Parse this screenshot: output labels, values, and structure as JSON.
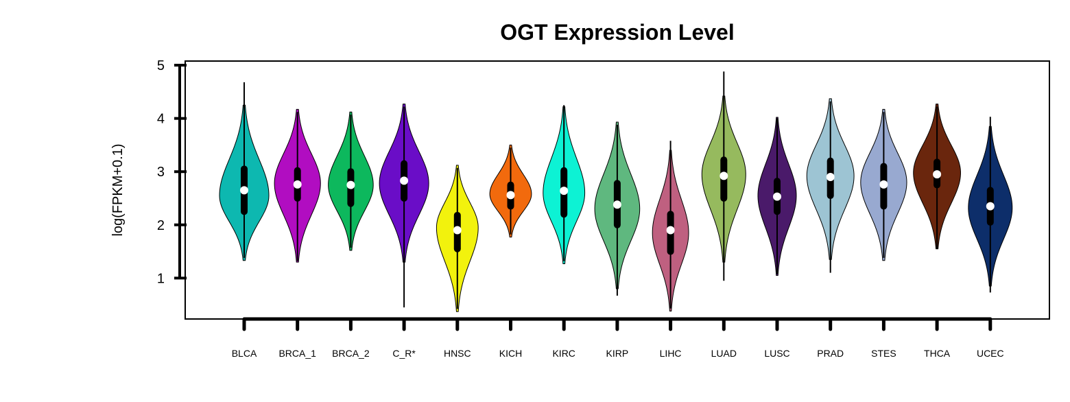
{
  "chart_data": {
    "type": "violin",
    "title": "OGT Expression Level",
    "xlabel": "",
    "ylabel": "log(FPKM+0.1)",
    "ylim": [
      0.23,
      5.05
    ],
    "yticks": [
      1,
      2,
      3,
      4,
      5
    ],
    "grid": false,
    "legend": "none",
    "categories": [
      "BLCA",
      "BRCA_1",
      "BRCA_2",
      "C_R*",
      "HNSC",
      "KICH",
      "KIRC",
      "KIRP",
      "LIHC",
      "LUAD",
      "LUSC",
      "PRAD",
      "STES",
      "THCA",
      "UCEC"
    ],
    "colors": [
      "#0DB8B0",
      "#B10DC1",
      "#0DB85D",
      "#6A0DC7",
      "#F2F20D",
      "#F26A0D",
      "#0DF2D4",
      "#5FB87F",
      "#BF6080",
      "#96BA5E",
      "#4A1A6A",
      "#9DC4D3",
      "#98A9D0",
      "#6A260D",
      "#0D2E6A"
    ],
    "series": [
      {
        "min": 1.38,
        "q1": 2.25,
        "median": 2.65,
        "q3": 3.05,
        "max": 4.68,
        "peak": 2.55,
        "width": 0.45
      },
      {
        "min": 1.32,
        "q1": 2.5,
        "median": 2.76,
        "q3": 3.02,
        "max": 4.12,
        "peak": 2.78,
        "width": 0.42
      },
      {
        "min": 1.57,
        "q1": 2.4,
        "median": 2.75,
        "q3": 3.0,
        "max": 4.07,
        "peak": 2.75,
        "width": 0.41
      },
      {
        "min": 0.45,
        "q1": 2.5,
        "median": 2.83,
        "q3": 3.15,
        "max": 4.22,
        "peak": 2.78,
        "width": 0.45
      },
      {
        "min": 0.42,
        "q1": 1.55,
        "median": 1.9,
        "q3": 2.18,
        "max": 3.07,
        "peak": 1.95,
        "width": 0.38
      },
      {
        "min": 1.82,
        "q1": 2.35,
        "median": 2.56,
        "q3": 2.75,
        "max": 3.45,
        "peak": 2.58,
        "width": 0.38
      },
      {
        "min": 1.32,
        "q1": 2.2,
        "median": 2.64,
        "q3": 3.02,
        "max": 4.25,
        "peak": 2.6,
        "width": 0.38
      },
      {
        "min": 0.67,
        "q1": 2.0,
        "median": 2.38,
        "q3": 2.78,
        "max": 3.88,
        "peak": 2.3,
        "width": 0.41
      },
      {
        "min": 0.43,
        "q1": 1.5,
        "median": 1.9,
        "q3": 2.2,
        "max": 3.58,
        "peak": 1.85,
        "width": 0.33
      },
      {
        "min": 0.95,
        "q1": 2.5,
        "median": 2.92,
        "q3": 3.22,
        "max": 4.88,
        "peak": 2.95,
        "width": 0.4
      },
      {
        "min": 1.08,
        "q1": 2.25,
        "median": 2.53,
        "q3": 2.82,
        "max": 4.0,
        "peak": 2.55,
        "width": 0.35
      },
      {
        "min": 1.1,
        "q1": 2.55,
        "median": 2.9,
        "q3": 3.2,
        "max": 4.32,
        "peak": 2.92,
        "width": 0.43
      },
      {
        "min": 1.38,
        "q1": 2.35,
        "median": 2.76,
        "q3": 3.1,
        "max": 4.12,
        "peak": 2.8,
        "width": 0.42
      },
      {
        "min": 1.55,
        "q1": 2.75,
        "median": 2.95,
        "q3": 3.18,
        "max": 4.22,
        "peak": 2.98,
        "width": 0.43
      },
      {
        "min": 0.73,
        "q1": 2.05,
        "median": 2.35,
        "q3": 2.65,
        "max": 4.03,
        "peak": 2.32,
        "width": 0.4
      }
    ]
  }
}
